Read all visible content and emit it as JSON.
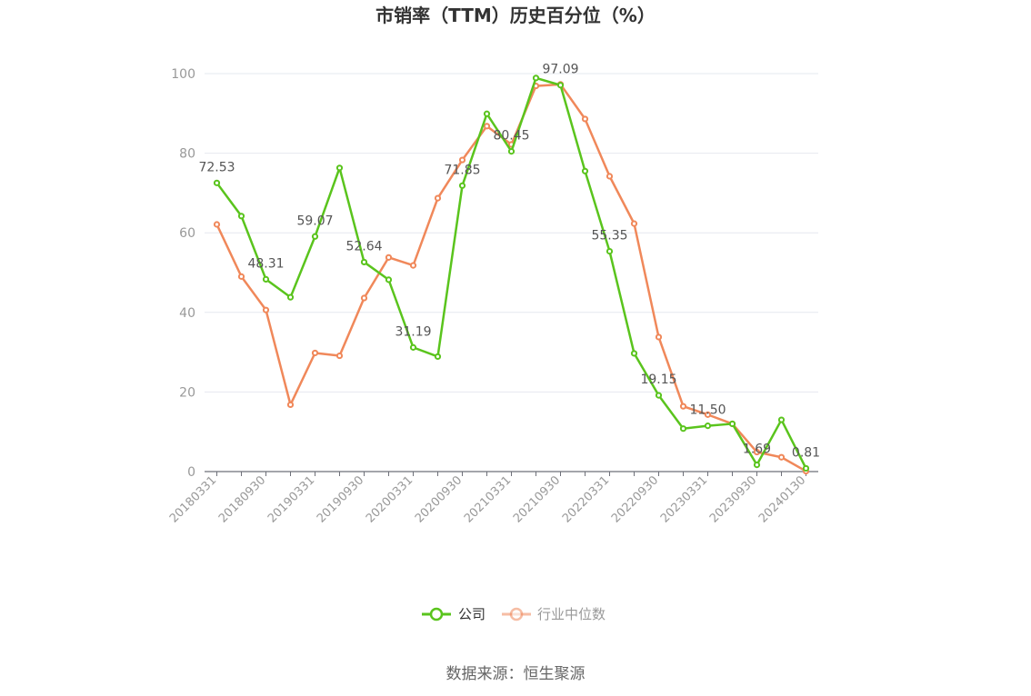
{
  "chart_data": {
    "type": "line",
    "title": "市销率（TTM）历史百分位（%）",
    "ylim": [
      0,
      100
    ],
    "yticks": [
      "0",
      "20",
      "40",
      "60",
      "80",
      "100"
    ],
    "x": [
      "20180331",
      "20180630",
      "20180930",
      "20181231",
      "20190331",
      "20190630",
      "20190930",
      "20191231",
      "20200331",
      "20200630",
      "20200930",
      "20201231",
      "20210331",
      "20210630",
      "20210930",
      "20211231",
      "20220331",
      "20220630",
      "20220930",
      "20221231",
      "20230331",
      "20230630",
      "20230930",
      "20231231",
      "20240130"
    ],
    "xtick_labels": [
      "20180331",
      "20180930",
      "20190331",
      "20190930",
      "20200331",
      "20200930",
      "20210331",
      "20210930",
      "20220331",
      "20220930",
      "20230331",
      "20230930",
      "20240130"
    ],
    "grid": "horizontal",
    "legend_position": "bottom",
    "series": [
      {
        "name": "公司",
        "color": "#5ac41d",
        "values": [
          72.53,
          64.2,
          48.31,
          43.8,
          59.07,
          76.3,
          52.64,
          48.2,
          31.19,
          28.9,
          71.85,
          89.9,
          80.45,
          98.9,
          97.09,
          75.5,
          55.35,
          29.7,
          19.15,
          10.8,
          11.5,
          12.0,
          1.69,
          13.0,
          0.81
        ]
      },
      {
        "name": "行业中位数",
        "color": "#f0885a",
        "values": [
          62.1,
          49.0,
          40.6,
          16.8,
          29.8,
          29.1,
          43.6,
          53.8,
          51.8,
          68.7,
          78.3,
          86.8,
          82.2,
          96.9,
          97.3,
          88.6,
          74.2,
          62.3,
          33.8,
          16.4,
          14.3,
          12.0,
          4.9,
          3.6,
          0.1
        ]
      }
    ],
    "data_labels": [
      {
        "index": 0,
        "text": "72.53"
      },
      {
        "index": 2,
        "text": "48.31"
      },
      {
        "index": 4,
        "text": "59.07"
      },
      {
        "index": 6,
        "text": "52.64"
      },
      {
        "index": 8,
        "text": "31.19"
      },
      {
        "index": 10,
        "text": "71.85"
      },
      {
        "index": 12,
        "text": "80.45"
      },
      {
        "index": 14,
        "text": "97.09"
      },
      {
        "index": 16,
        "text": "55.35"
      },
      {
        "index": 18,
        "text": "19.15"
      },
      {
        "index": 20,
        "text": "11.50"
      },
      {
        "index": 22,
        "text": "1.69"
      },
      {
        "index": 24,
        "text": "0.81"
      }
    ],
    "source": "数据来源：恒生聚源"
  }
}
